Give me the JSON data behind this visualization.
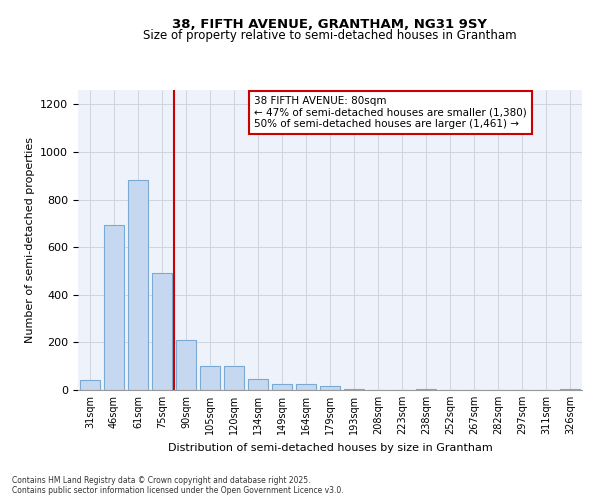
{
  "title1": "38, FIFTH AVENUE, GRANTHAM, NG31 9SY",
  "title2": "Size of property relative to semi-detached houses in Grantham",
  "xlabel": "Distribution of semi-detached houses by size in Grantham",
  "ylabel": "Number of semi-detached properties",
  "categories": [
    "31sqm",
    "46sqm",
    "61sqm",
    "75sqm",
    "90sqm",
    "105sqm",
    "120sqm",
    "134sqm",
    "149sqm",
    "164sqm",
    "179sqm",
    "193sqm",
    "208sqm",
    "223sqm",
    "238sqm",
    "252sqm",
    "267sqm",
    "282sqm",
    "297sqm",
    "311sqm",
    "326sqm"
  ],
  "values": [
    40,
    695,
    880,
    490,
    210,
    100,
    100,
    45,
    25,
    25,
    15,
    5,
    0,
    0,
    5,
    0,
    0,
    0,
    0,
    0,
    5
  ],
  "bar_color": "#c5d8f0",
  "bar_edge_color": "#7aaad4",
  "grid_color": "#c8d0dc",
  "vline_x": 3.5,
  "vline_color": "#cc0000",
  "annotation_text": "38 FIFTH AVENUE: 80sqm\n← 47% of semi-detached houses are smaller (1,380)\n50% of semi-detached houses are larger (1,461) →",
  "footnote": "Contains HM Land Registry data © Crown copyright and database right 2025.\nContains public sector information licensed under the Open Government Licence v3.0.",
  "ylim": [
    0,
    1260
  ],
  "yticks": [
    0,
    200,
    400,
    600,
    800,
    1000,
    1200
  ],
  "background_color": "#eef2fa"
}
